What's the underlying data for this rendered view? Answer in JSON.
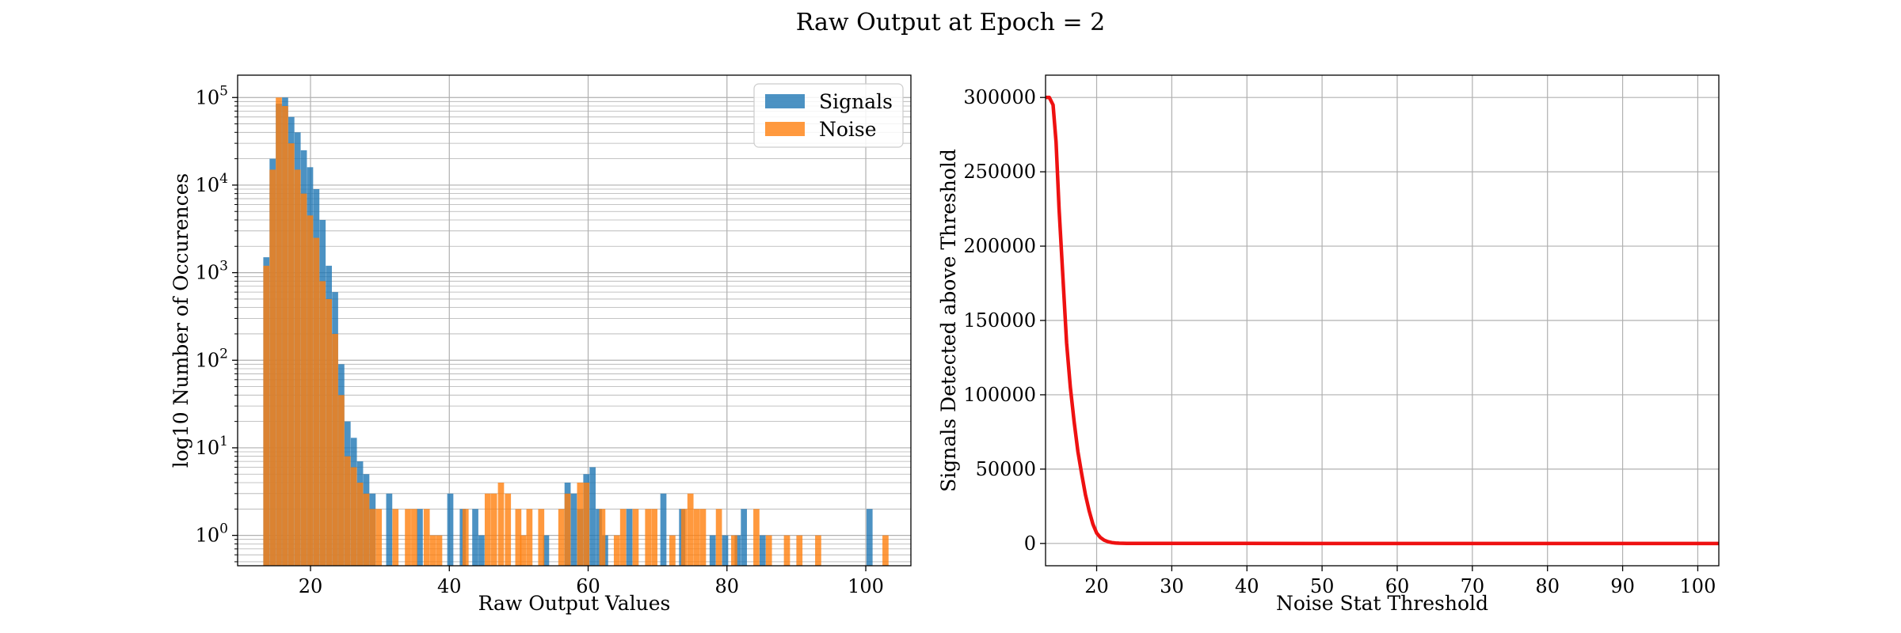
{
  "figure": {
    "title": "Raw Output at Epoch = 2"
  },
  "colors": {
    "signals": "#1f77b4",
    "noise": "#ff7f0e",
    "curve": "#ee1111",
    "grid": "#b0b0b0"
  },
  "chart_data": [
    {
      "type": "bar",
      "subtype": "histogram",
      "title": "",
      "xlabel": "Raw Output Values",
      "ylabel": "log10 Number of Occurences",
      "yscale": "log",
      "xlim": [
        9.5,
        106.5
      ],
      "ylim": [
        0.45,
        180000
      ],
      "xticks": [
        20,
        40,
        60,
        80,
        100
      ],
      "yticks": [
        1,
        10,
        100,
        1000,
        10000,
        100000
      ],
      "yticklabels": [
        {
          "base": "10",
          "exp": "0"
        },
        {
          "base": "10",
          "exp": "1"
        },
        {
          "base": "10",
          "exp": "2"
        },
        {
          "base": "10",
          "exp": "3"
        },
        {
          "base": "10",
          "exp": "4"
        },
        {
          "base": "10",
          "exp": "5"
        }
      ],
      "bin_width": 0.88,
      "grid": true,
      "legend_position": "upper-right",
      "series": [
        {
          "name": "Signals",
          "alpha": 0.8,
          "bins": [
            [
              13.2,
              1500
            ],
            [
              14.1,
              20000
            ],
            [
              15.0,
              85000
            ],
            [
              15.9,
              100000
            ],
            [
              16.8,
              60000
            ],
            [
              17.7,
              40000
            ],
            [
              18.6,
              25000
            ],
            [
              19.5,
              16000
            ],
            [
              20.4,
              9000
            ],
            [
              21.3,
              4000
            ],
            [
              22.2,
              1200
            ],
            [
              23.1,
              600
            ],
            [
              24.0,
              90
            ],
            [
              24.9,
              20
            ],
            [
              25.8,
              13
            ],
            [
              26.7,
              7
            ],
            [
              27.6,
              5
            ],
            [
              28.5,
              3
            ],
            [
              30.9,
              3
            ],
            [
              35.3,
              2
            ],
            [
              39.7,
              3
            ],
            [
              41.5,
              2
            ],
            [
              43.3,
              2
            ],
            [
              44.2,
              1
            ],
            [
              53.5,
              1
            ],
            [
              56.6,
              4
            ],
            [
              57.5,
              3
            ],
            [
              58.4,
              2
            ],
            [
              59.3,
              5
            ],
            [
              60.2,
              6
            ],
            [
              61.1,
              2
            ],
            [
              62.0,
              1
            ],
            [
              65.5,
              2
            ],
            [
              70.4,
              3
            ],
            [
              73.1,
              2
            ],
            [
              77.5,
              1
            ],
            [
              79.3,
              1
            ],
            [
              81.1,
              1
            ],
            [
              82.0,
              2
            ],
            [
              84.7,
              1
            ],
            [
              100.1,
              2
            ]
          ]
        },
        {
          "name": "Noise",
          "alpha": 0.8,
          "bins": [
            [
              13.2,
              1200
            ],
            [
              14.1,
              15000
            ],
            [
              15.0,
              100000
            ],
            [
              15.9,
              80000
            ],
            [
              16.8,
              30000
            ],
            [
              17.7,
              15000
            ],
            [
              18.6,
              8000
            ],
            [
              19.5,
              4500
            ],
            [
              20.4,
              2500
            ],
            [
              21.3,
              800
            ],
            [
              22.2,
              500
            ],
            [
              23.1,
              200
            ],
            [
              24.0,
              40
            ],
            [
              24.9,
              8
            ],
            [
              25.8,
              6
            ],
            [
              26.7,
              4
            ],
            [
              27.6,
              3
            ],
            [
              28.5,
              2
            ],
            [
              29.4,
              2
            ],
            [
              31.8,
              2
            ],
            [
              33.6,
              2
            ],
            [
              34.5,
              2
            ],
            [
              36.3,
              2
            ],
            [
              37.2,
              1
            ],
            [
              38.1,
              1
            ],
            [
              41.9,
              2
            ],
            [
              45.1,
              3
            ],
            [
              46.0,
              3
            ],
            [
              47.0,
              4
            ],
            [
              48.0,
              3
            ],
            [
              49.5,
              2
            ],
            [
              50.2,
              1
            ],
            [
              51.1,
              2
            ],
            [
              52.8,
              2
            ],
            [
              55.7,
              2
            ],
            [
              56.6,
              3
            ],
            [
              58.4,
              4
            ],
            [
              59.3,
              4
            ],
            [
              61.6,
              2
            ],
            [
              63.7,
              1
            ],
            [
              64.6,
              2
            ],
            [
              66.4,
              2
            ],
            [
              68.2,
              2
            ],
            [
              69.1,
              2
            ],
            [
              71.7,
              1
            ],
            [
              73.4,
              2
            ],
            [
              74.3,
              3
            ],
            [
              75.2,
              2
            ],
            [
              76.1,
              2
            ],
            [
              78.4,
              2
            ],
            [
              80.6,
              1
            ],
            [
              83.8,
              2
            ],
            [
              85.6,
              1
            ],
            [
              88.2,
              1
            ],
            [
              90.0,
              1
            ],
            [
              92.7,
              1
            ],
            [
              102.4,
              1
            ]
          ]
        }
      ]
    },
    {
      "type": "line",
      "title": "",
      "xlabel": "Noise Stat Threshold",
      "ylabel": "Signals Detected above Threshold",
      "xlim": [
        13.2,
        102.8
      ],
      "ylim": [
        -15000,
        315000
      ],
      "xticks": [
        20,
        30,
        40,
        50,
        60,
        70,
        80,
        90,
        100
      ],
      "yticks": [
        0,
        50000,
        100000,
        150000,
        200000,
        250000,
        300000
      ],
      "grid": true,
      "series": [
        {
          "x": [
            13.2,
            13.7,
            14.2,
            14.6,
            15.0,
            15.5,
            16.0,
            16.5,
            17.0,
            17.5,
            18.0,
            18.5,
            19.0,
            19.5,
            20.0,
            20.5,
            21.0,
            21.5,
            22.0,
            22.5,
            23.0,
            24.0,
            25.0,
            30.0,
            40.0,
            60.0,
            80.0,
            102.8
          ],
          "y": [
            300000,
            300000,
            295000,
            270000,
            225000,
            180000,
            135000,
            105000,
            82000,
            62000,
            47000,
            33000,
            22000,
            13000,
            7000,
            4000,
            2200,
            1200,
            600,
            300,
            150,
            50,
            20,
            5,
            2,
            1,
            1,
            0
          ]
        }
      ]
    }
  ]
}
